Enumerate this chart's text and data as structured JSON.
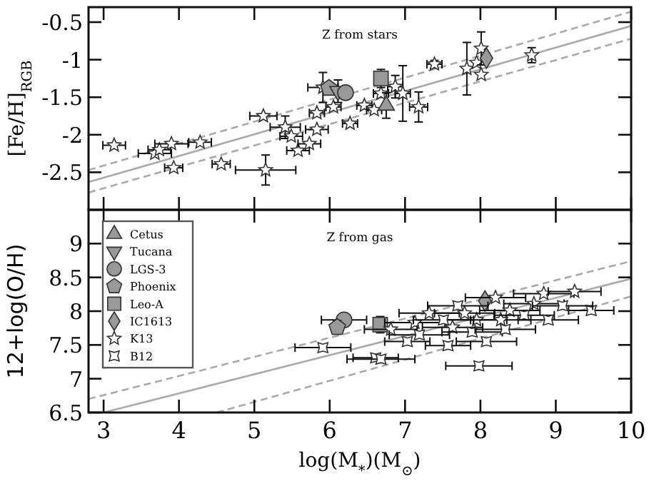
{
  "chart_data": [
    {
      "type": "scatter",
      "title": "Z from stars",
      "ylabel": "[Fe/H]$_{RGB}$",
      "xlim": [
        2.8,
        10
      ],
      "ylim": [
        -3,
        -0.3
      ],
      "xticks": [
        3,
        4,
        5,
        6,
        7,
        8,
        9,
        10
      ],
      "yticks": [
        -0.5,
        -1,
        -1.5,
        -2,
        -2.5
      ],
      "tick_labels": "y",
      "series": [
        {
          "type": "line",
          "color": "#aaaaaa",
          "line_style": "solid",
          "x": [
            2.8,
            10
          ],
          "values": [
            -2.63,
            -0.55
          ]
        },
        {
          "type": "line",
          "color": "#aaaaaa",
          "line_style": "dashed",
          "x": [
            2.8,
            10
          ],
          "values": [
            -2.47,
            -0.36
          ]
        },
        {
          "type": "line",
          "color": "#aaaaaa",
          "line_style": "dashed",
          "x": [
            2.8,
            10
          ],
          "values": [
            -2.77,
            -0.72
          ]
        },
        {
          "color": "#ffffff",
          "marker": "star",
          "x": [
            3.14,
            3.68,
            3.74,
            3.9,
            3.93,
            4.28,
            4.56,
            5.15,
            5.12,
            5.41,
            5.49,
            5.58,
            5.73,
            5.83,
            5.91,
            5.83,
            6.05,
            6.27,
            6.46,
            6.59,
            6.68,
            6.87,
            6.97,
            7.18,
            7.39,
            7.82,
            7.95,
            8.01,
            8.01,
            8.68
          ],
          "values": [
            -2.14,
            -2.25,
            -2.2,
            -2.12,
            -2.44,
            -2.1,
            -2.39,
            -2.47,
            -1.75,
            -1.9,
            -2.02,
            -2.21,
            -2.12,
            -1.93,
            -1.37,
            -1.71,
            -1.63,
            -1.85,
            -1.61,
            -1.67,
            -1.45,
            -1.36,
            -1.45,
            -1.63,
            -1.06,
            -1.12,
            -1.04,
            -0.85,
            -1.2,
            -0.94
          ],
          "xerrors": [
            0.15,
            0.22,
            0.15,
            0.22,
            0.12,
            0.15,
            0.12,
            0.4,
            0.18,
            0.2,
            0.15,
            0.15,
            0.15,
            0.15,
            0.2,
            0.1,
            0.1,
            0.1,
            0.1,
            0.1,
            0.1,
            0.1,
            0.1,
            0.12,
            0.1,
            null,
            null,
            null,
            null,
            null
          ],
          "errors": [
            null,
            null,
            null,
            null,
            null,
            null,
            null,
            0.2,
            null,
            0.15,
            null,
            null,
            null,
            null,
            0.2,
            null,
            null,
            null,
            null,
            null,
            null,
            0.15,
            0.37,
            0.2,
            0.05,
            0.35,
            null,
            0.22,
            null,
            0.1
          ]
        },
        {
          "color": "#999999",
          "x": [
            5.99
          ],
          "values": [
            -1.38
          ]
        },
        {
          "color": "#999999",
          "marker": "triangle-down",
          "x": [
            6.11
          ],
          "values": [
            -1.42
          ],
          "errors": [
            0.15
          ]
        },
        {
          "color": "#999999",
          "marker": "circle",
          "x": [
            6.21
          ],
          "values": [
            -1.44
          ]
        },
        {
          "color": "#999999",
          "marker": "square",
          "x": [
            6.68
          ],
          "values": [
            -1.25
          ],
          "errors": [
            0.12
          ]
        },
        {
          "color": "#999999",
          "marker": "triangle",
          "x": [
            6.75
          ],
          "values": [
            -1.61
          ],
          "errors": [
            0.17
          ]
        },
        {
          "color": "#999999",
          "marker": "diamond",
          "x": [
            8.08
          ],
          "values": [
            -0.98
          ]
        }
      ]
    },
    {
      "type": "scatter",
      "title": "Z from gas",
      "xlabel": "log(M$_{*}$)(M$_{⊙}$)",
      "ylabel": "12+log(O/H)",
      "xlim": [
        2.8,
        10
      ],
      "ylim": [
        6.5,
        9.5
      ],
      "xticks": [
        3,
        4,
        5,
        6,
        7,
        8,
        9,
        10
      ],
      "yticks": [
        6.5,
        7,
        7.5,
        8,
        8.5,
        9
      ],
      "legend": "top left",
      "series": [
        {
          "type": "line",
          "color": "#aaaaaa",
          "line_style": "solid",
          "x": [
            3,
            10
          ],
          "values": [
            6.5,
            8.48
          ]
        },
        {
          "type": "line",
          "color": "#aaaaaa",
          "line_style": "dashed",
          "x": [
            2.8,
            10
          ],
          "values": [
            6.7,
            8.74
          ]
        },
        {
          "type": "line",
          "color": "#aaaaaa",
          "line_style": "dashed",
          "x": [
            4.5,
            10
          ],
          "values": [
            6.5,
            8.22
          ]
        },
        {
          "name": "Cetus",
          "color": "#999999",
          "marker": "triangle"
        },
        {
          "name": "Tucana",
          "color": "#999999",
          "marker": "triangle-down"
        },
        {
          "name": "LGS-3",
          "color": "#999999",
          "marker": "circle",
          "x": [
            6.19
          ],
          "values": [
            7.87
          ],
          "xerrors": [
            0.3
          ]
        },
        {
          "name": "Phoenix",
          "color": "#999999",
          "x": [
            6.1
          ],
          "values": [
            7.76
          ],
          "errors": [
            0.1
          ]
        },
        {
          "name": "Leo-A",
          "color": "#999999",
          "marker": "square",
          "x": [
            6.67
          ],
          "values": [
            7.8
          ],
          "errors": [
            0.12
          ]
        },
        {
          "name": "IC1613",
          "color": "#999999",
          "marker": "diamond",
          "x": [
            8.06
          ],
          "values": [
            8.15
          ]
        },
        {
          "name": "K13",
          "color": "#ffffff",
          "marker": "star",
          "x": [
            8.2,
            8.84,
            9.25,
            7.13,
            7.32,
            7.63,
            7.95,
            8.39,
            8.71,
            6.81,
            8.27,
            7.79
          ],
          "values": [
            8.2,
            8.26,
            8.29,
            7.83,
            7.97,
            7.76,
            7.87,
            8.01,
            8.11,
            7.73,
            7.87,
            7.97
          ],
          "xerrors": [
            0.4,
            0.4,
            0.35,
            0.4,
            0.4,
            0.4,
            0.4,
            0.4,
            0.4,
            0.35,
            0.4,
            0.4
          ]
        },
        {
          "name": "B12",
          "color": "#ffffff",
          "marker": "cross",
          "x": [
            5.91,
            6.61,
            6.68,
            7.98,
            7.03,
            7.57,
            9.47,
            7.19,
            7.89,
            8.33,
            8.58,
            7.51,
            9.09,
            8.9,
            8.08,
            7.7
          ],
          "values": [
            7.46,
            7.31,
            7.29,
            7.19,
            7.55,
            7.49,
            8.01,
            7.65,
            7.69,
            7.73,
            7.94,
            7.87,
            8.08,
            7.87,
            7.55,
            8.08
          ],
          "xerrors": [
            0.37,
            0.3,
            0.45,
            0.44,
            0.3,
            0.3,
            0.3,
            0.4,
            0.4,
            0.4,
            0.4,
            0.4,
            0.4,
            0.4,
            0.4,
            0.4
          ]
        }
      ]
    }
  ]
}
